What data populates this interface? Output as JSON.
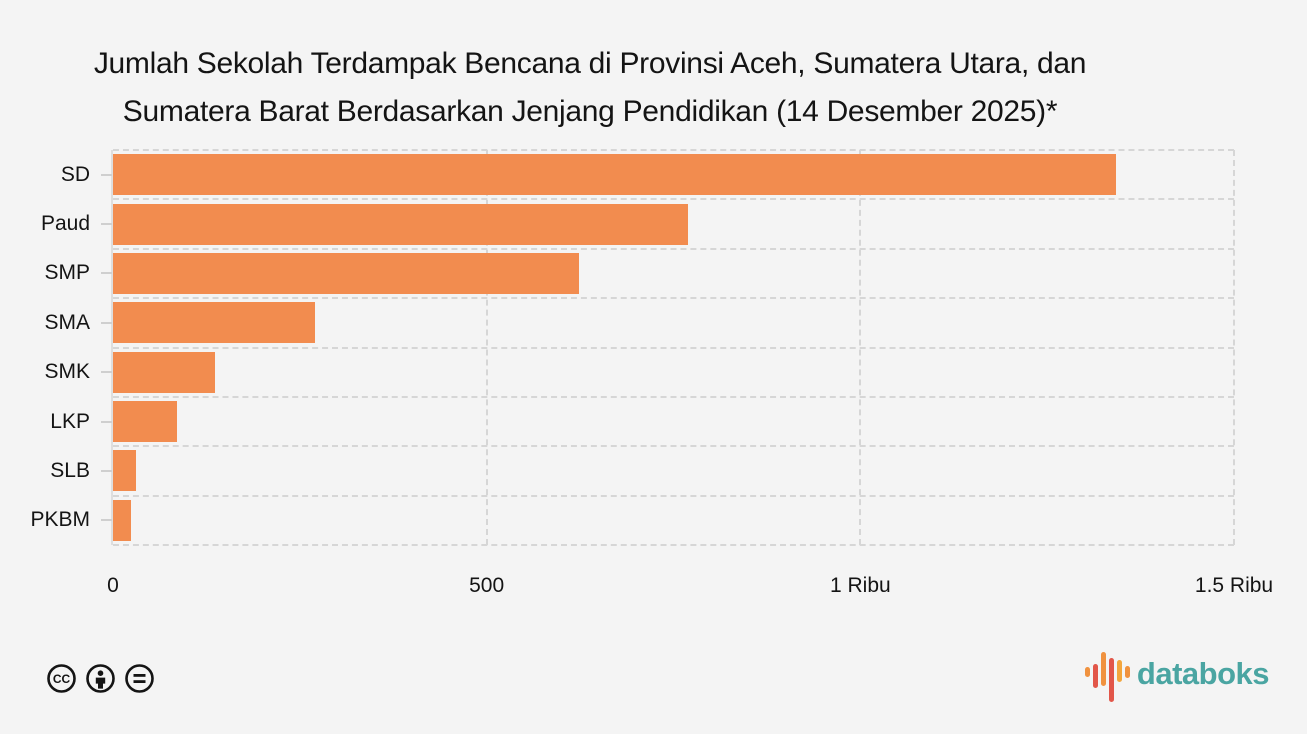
{
  "title": {
    "line1": "Jumlah Sekolah Terdampak Bencana di Provinsi Aceh, Sumatera Utara, dan",
    "line2": "Sumatera Barat Berdasarkan Jenjang Pendidikan (14 Desember 2025)*"
  },
  "chart_data": {
    "type": "bar",
    "orientation": "horizontal",
    "title": "Jumlah Sekolah Terdampak Bencana di Provinsi Aceh, Sumatera Utara, dan Sumatera Barat Berdasarkan Jenjang Pendidikan (14 Desember 2025)*",
    "categories": [
      "SD",
      "Paud",
      "SMP",
      "SMA",
      "SMK",
      "LKP",
      "SLB",
      "PKBM"
    ],
    "values": [
      1342,
      769,
      623,
      270,
      137,
      86,
      31,
      24
    ],
    "xlabel": "",
    "ylabel": "",
    "xlim": [
      0,
      1500
    ],
    "x_ticks": [
      {
        "value": 0,
        "label": "0"
      },
      {
        "value": 500,
        "label": "500"
      },
      {
        "value": 1000,
        "label": "1 Ribu"
      },
      {
        "value": 1500,
        "label": "1.5 Ribu"
      }
    ],
    "grid": "dashed",
    "legend": "none",
    "bar_color": "#f28c4f"
  },
  "colors": {
    "background": "#f4f4f4",
    "bar": "#f28c4f",
    "gridline": "#d6d6d6",
    "axis": "#dedede",
    "text": "#141414",
    "brand_teal": "#4aa5a2",
    "logo_orange": "#f0923f",
    "logo_red": "#e25649",
    "logo_amber": "#f3a63d"
  },
  "footer": {
    "license_icons": [
      {
        "name": "cc-icon"
      },
      {
        "name": "cc-by-icon"
      },
      {
        "name": "cc-nd-icon"
      }
    ],
    "brand_name": "databoks"
  }
}
